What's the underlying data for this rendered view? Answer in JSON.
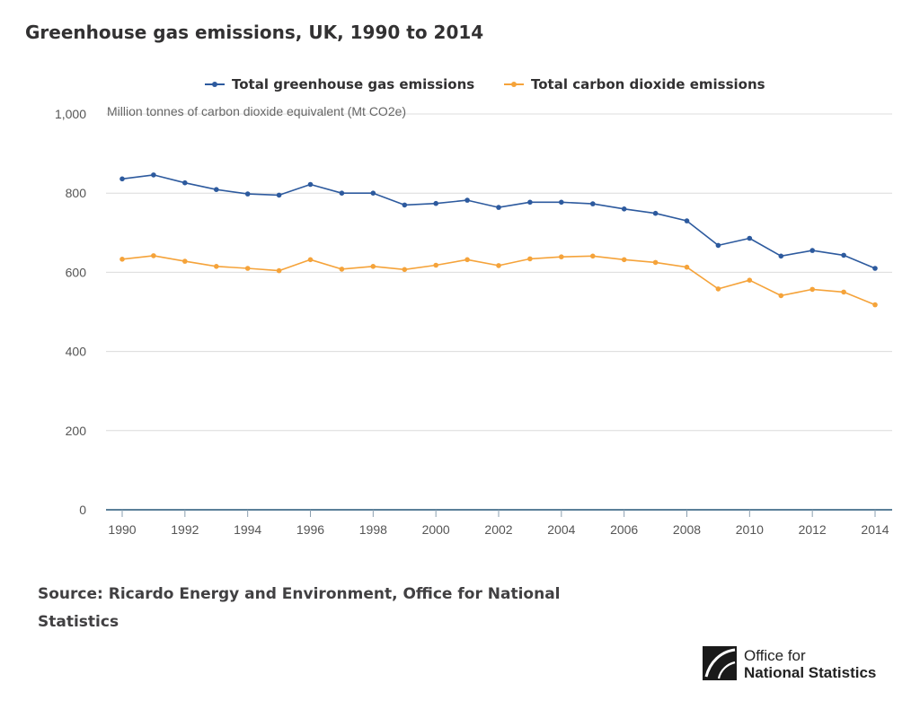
{
  "chart_data": {
    "type": "line",
    "title": "Greenhouse gas emissions, UK, 1990 to 2014",
    "ylabel": "Million tonnes of carbon dioxide equivalent (Mt CO2e)",
    "xlabel": "",
    "x": [
      1990,
      1991,
      1992,
      1993,
      1994,
      1995,
      1996,
      1997,
      1998,
      1999,
      2000,
      2001,
      2002,
      2003,
      2004,
      2005,
      2006,
      2007,
      2008,
      2009,
      2010,
      2011,
      2012,
      2013,
      2014
    ],
    "xticks": [
      "1990",
      "1992",
      "1994",
      "1996",
      "1998",
      "2000",
      "2002",
      "2004",
      "2006",
      "2008",
      "2010",
      "2012",
      "2014"
    ],
    "yticks": [
      "0",
      "200",
      "400",
      "600",
      "800",
      "1,000"
    ],
    "ylim": [
      0,
      1000
    ],
    "xlim": [
      1990,
      2014
    ],
    "grid": true,
    "legend_position": "top",
    "series": [
      {
        "name": "Total greenhouse gas emissions",
        "color": "#2d5a9e",
        "values": [
          836,
          846,
          826,
          809,
          798,
          795,
          822,
          800,
          800,
          770,
          774,
          782,
          764,
          777,
          777,
          773,
          760,
          749,
          730,
          668,
          686,
          641,
          655,
          643,
          610
        ]
      },
      {
        "name": "Total carbon dioxide emissions",
        "color": "#f5a33a",
        "values": [
          633,
          642,
          628,
          615,
          610,
          604,
          632,
          608,
          615,
          607,
          618,
          632,
          617,
          634,
          639,
          641,
          632,
          625,
          613,
          558,
          580,
          541,
          557,
          550,
          518
        ]
      }
    ]
  },
  "source": "Source: Ricardo Energy and Environment, Office for National Statistics",
  "logo": {
    "line1": "Office for",
    "line2": "National Statistics"
  }
}
